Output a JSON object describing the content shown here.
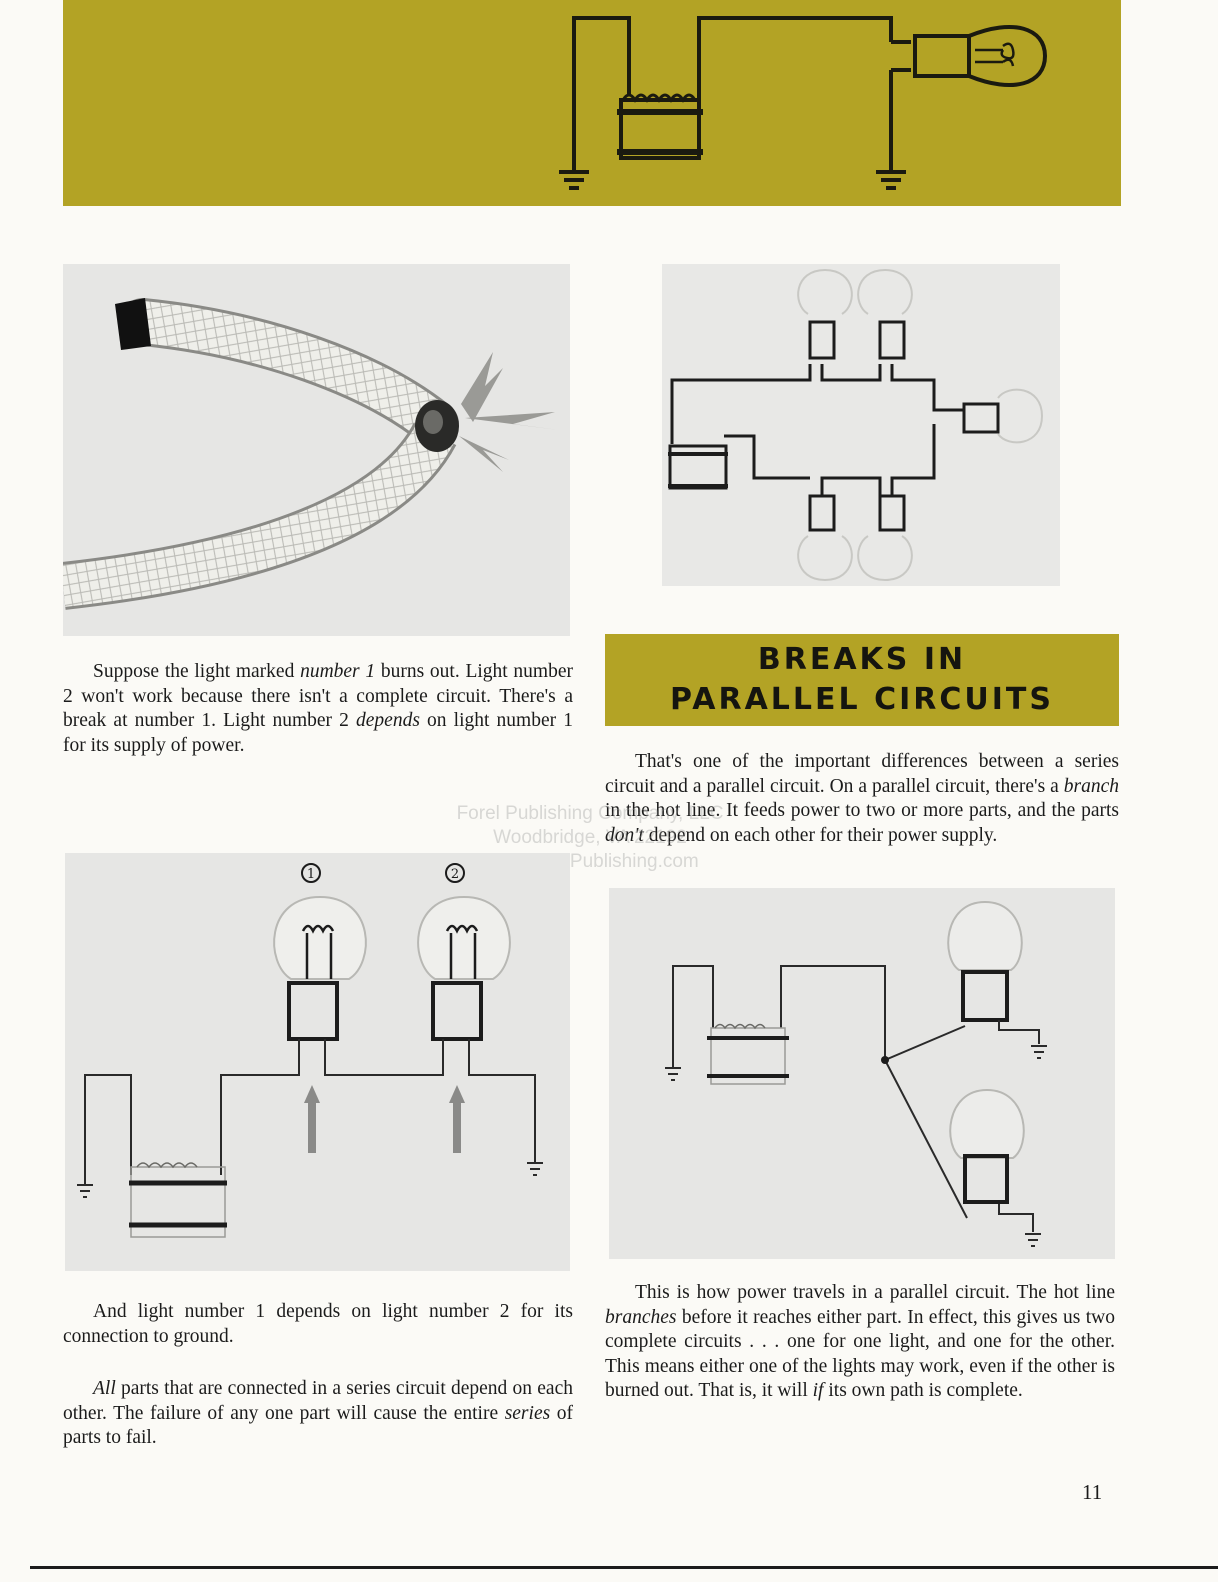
{
  "heading": {
    "line1": "BREAKS IN",
    "line2": "PARALLEL CIRCUITS"
  },
  "paragraph_top_left": {
    "parts": [
      "Suppose the light marked ",
      "number 1",
      " burns out. Light number 2 won't work because there isn't a complete circuit. There's a break at number 1. Light number 2 ",
      "depends",
      " on light number 1 for its supply of power."
    ]
  },
  "paragraph_top_right": {
    "parts": [
      "That's one of the important differences between a series circuit and a parallel circuit. On a parallel circuit, there's a ",
      "branch",
      " in the hot line. It feeds power to two or more parts, and the parts ",
      "don't",
      " depend on each other for their power supply."
    ]
  },
  "paragraph_bottom_left_1": {
    "text": "And light number 1 depends on light number 2 for its connection to ground."
  },
  "paragraph_bottom_left_2": {
    "parts": [
      "All",
      " parts that are connected in a series circuit depend on each other. The failure of any one part will cause the entire ",
      "series",
      " of parts to fail."
    ]
  },
  "paragraph_bottom_right": {
    "parts": [
      "This is how power travels in a parallel circuit. The hot line ",
      "branches",
      " before it reaches either part. In effect, this gives us two complete circuits . . . one for one light, and one for the other. This means either one of the lights may work, even if the other is burned out. That is, it will ",
      "if",
      " its own path is complete."
    ]
  },
  "series_diagram": {
    "label_1": "1",
    "label_2": "2"
  },
  "watermark": {
    "line1": "Forel Publishing Company, LLC",
    "line2": "Woodbridge, VA 22192",
    "line3": "www.ForelPublishing.com"
  },
  "page_number": "11",
  "colors": {
    "banner": "#b3a325",
    "heading_box": "#b3a325",
    "photo_bg": "#e6e6e4"
  }
}
